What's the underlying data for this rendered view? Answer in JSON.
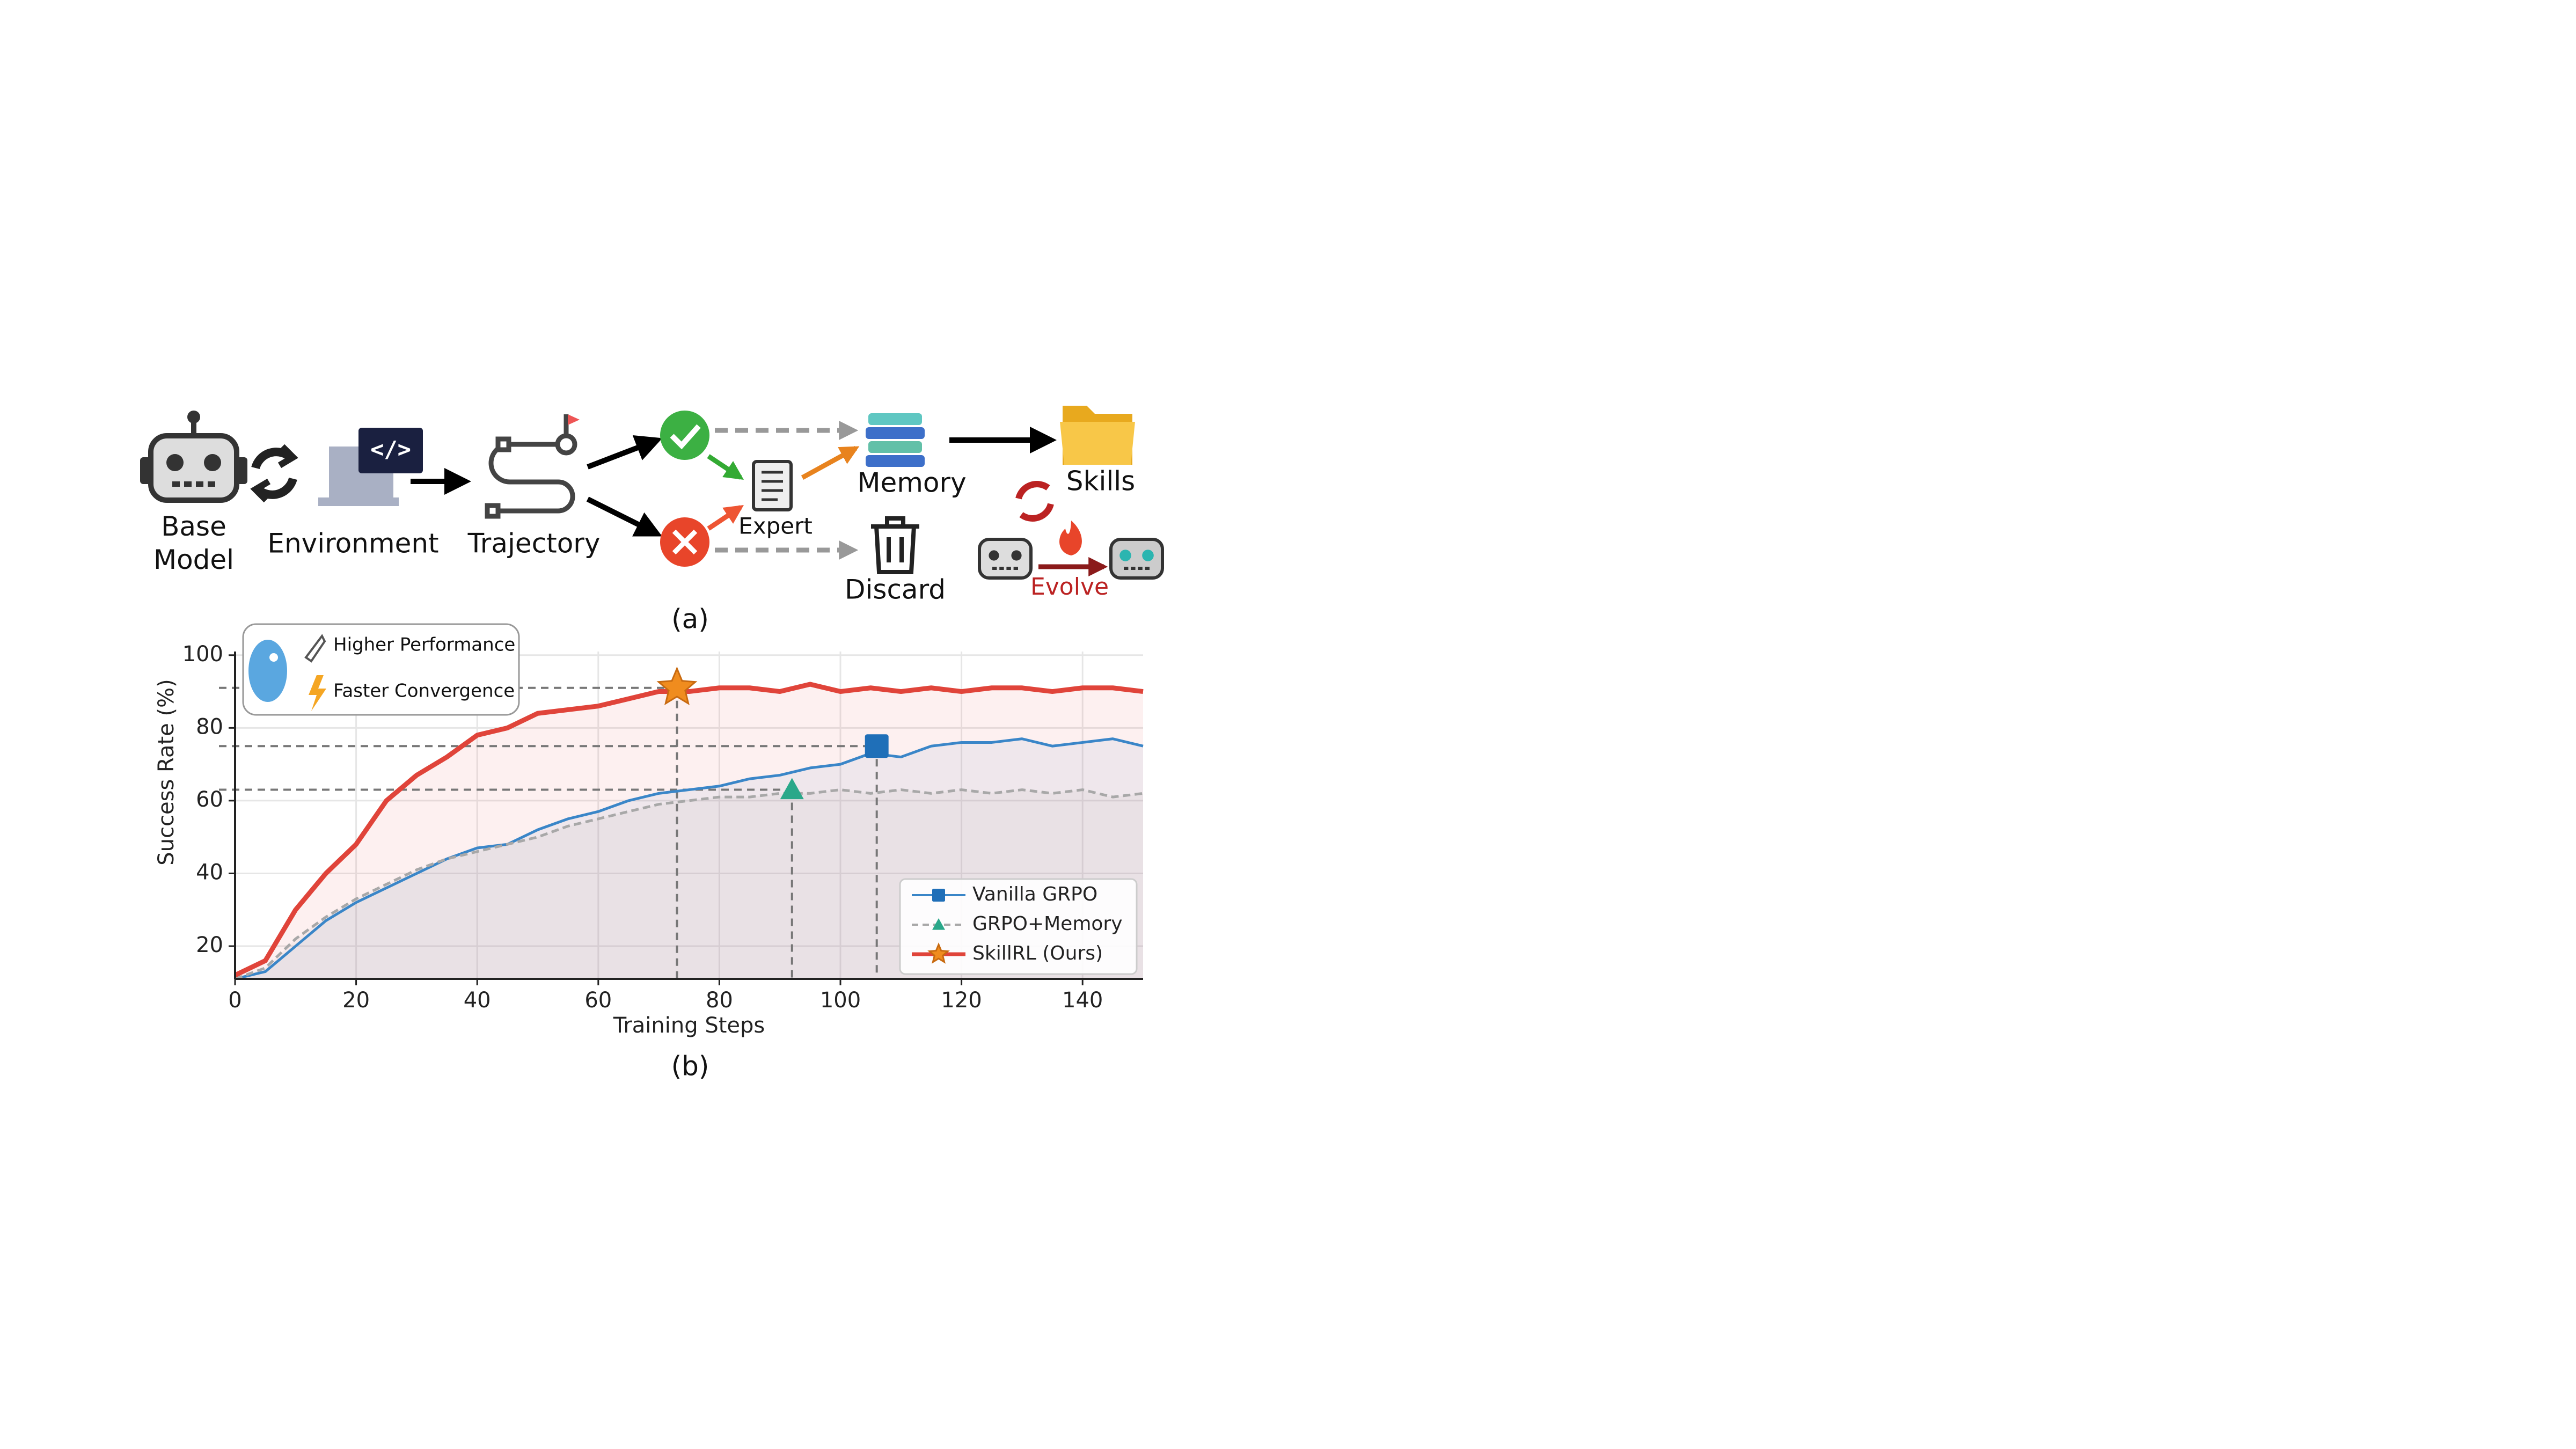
{
  "diagram": {
    "base_model": "Base Model",
    "environment": "Environment",
    "trajectory": "Trajectory",
    "expert": "Expert",
    "memory": "Memory",
    "discard": "Discard",
    "skills": "Skills",
    "evolve": "Evolve",
    "caption": "(a)"
  },
  "chart_data": {
    "type": "line",
    "caption": "(b)",
    "xlabel": "Training Steps",
    "ylabel": "Success Rate (%)",
    "notes": [
      "Higher Performance",
      "Faster Convergence"
    ],
    "x": [
      0,
      5,
      10,
      15,
      20,
      25,
      30,
      35,
      40,
      45,
      50,
      55,
      60,
      65,
      70,
      75,
      80,
      85,
      90,
      95,
      100,
      105,
      110,
      115,
      120,
      125,
      130,
      135,
      140,
      145,
      150
    ],
    "series": [
      {
        "name": "Vanilla GRPO",
        "color": "#3a86c8",
        "marker": "square",
        "marker_color": "#1f6fb8",
        "dash": false,
        "values": [
          11,
          13,
          20,
          27,
          32,
          36,
          40,
          44,
          47,
          48,
          52,
          55,
          57,
          60,
          62,
          63,
          64,
          66,
          67,
          69,
          70,
          73,
          72,
          75,
          76,
          76,
          77,
          75,
          76,
          77,
          75
        ],
        "highlight": {
          "x": 106,
          "y": 75
        }
      },
      {
        "name": "GRPO+Memory",
        "color": "#a8a8a8",
        "marker": "triangle",
        "marker_color": "#2aa88a",
        "dash": true,
        "values": [
          11,
          14,
          22,
          28,
          33,
          37,
          41,
          44,
          46,
          48,
          50,
          53,
          55,
          57,
          59,
          60,
          61,
          61,
          62,
          62,
          63,
          62,
          63,
          62,
          63,
          62,
          63,
          62,
          63,
          61,
          62
        ],
        "highlight": {
          "x": 92,
          "y": 63
        }
      },
      {
        "name": "SkillRL (Ours)",
        "color": "#e0443a",
        "marker": "star",
        "marker_color": "#f08c1e",
        "dash": false,
        "values": [
          12,
          16,
          30,
          40,
          48,
          60,
          67,
          72,
          78,
          80,
          84,
          85,
          86,
          88,
          90,
          90,
          91,
          91,
          90,
          92,
          90,
          91,
          90,
          91,
          90,
          91,
          91,
          90,
          91,
          91,
          90
        ],
        "highlight": {
          "x": 73,
          "y": 91
        }
      }
    ],
    "xlim": [
      0,
      150
    ],
    "ylim": [
      11,
      101
    ],
    "xticks": [
      0,
      20,
      40,
      60,
      80,
      100,
      120,
      140
    ],
    "yticks": [
      20,
      40,
      60,
      80,
      100
    ],
    "grid": true,
    "legend": "lower right"
  }
}
